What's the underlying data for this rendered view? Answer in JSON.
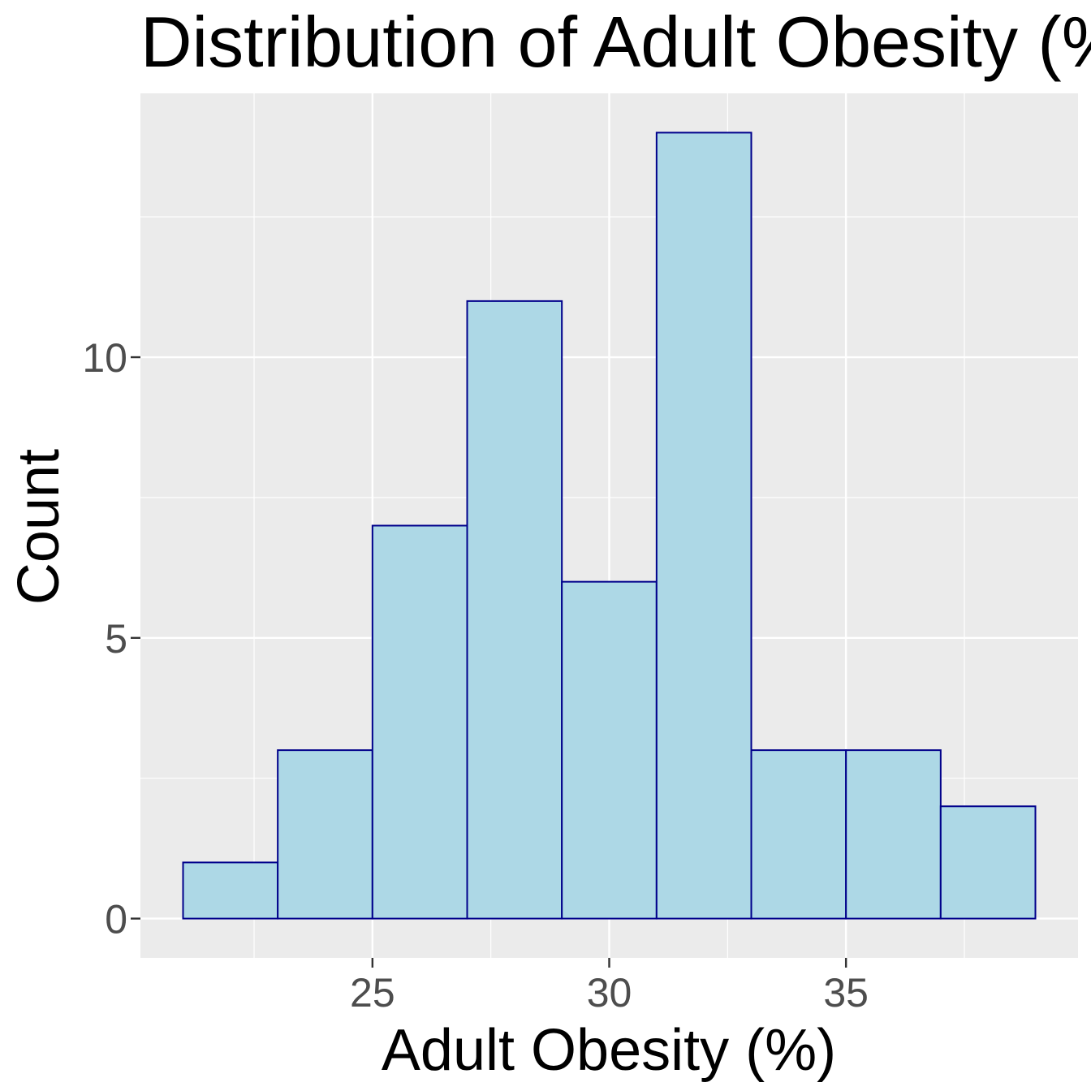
{
  "chart_data": {
    "type": "bar",
    "title": "Distribution of Adult Obesity (%)",
    "xlabel": "Adult Obesity (%)",
    "ylabel": "Count",
    "bins": [
      {
        "start": 21,
        "end": 23,
        "count": 1
      },
      {
        "start": 23,
        "end": 25,
        "count": 3
      },
      {
        "start": 25,
        "end": 27,
        "count": 7
      },
      {
        "start": 27,
        "end": 29,
        "count": 11
      },
      {
        "start": 29,
        "end": 31,
        "count": 6
      },
      {
        "start": 31,
        "end": 33,
        "count": 14
      },
      {
        "start": 33,
        "end": 35,
        "count": 3
      },
      {
        "start": 35,
        "end": 37,
        "count": 3
      },
      {
        "start": 37,
        "end": 39,
        "count": 2
      }
    ],
    "xlim": [
      20.1,
      39.9
    ],
    "ylim": [
      -0.7,
      14.7
    ],
    "x_ticks": [
      25,
      30,
      35
    ],
    "x_tick_labels": [
      "25",
      "30",
      "35"
    ],
    "y_ticks": [
      0,
      5,
      10
    ],
    "y_tick_labels": [
      "0",
      "5",
      "10"
    ],
    "x_minor_gridlines": [
      22.5,
      27.5,
      32.5,
      37.5
    ],
    "y_minor_gridlines": [
      2.5,
      7.5,
      12.5
    ],
    "grid": true,
    "legend": "none",
    "colors": {
      "bar_fill": "#add8e6",
      "bar_outline": "#00008b",
      "panel_background": "#ebebeb",
      "gridline": "#ffffff",
      "tick_label": "#4d4d4d",
      "tick_mark": "#333333",
      "title": "#000000"
    }
  }
}
